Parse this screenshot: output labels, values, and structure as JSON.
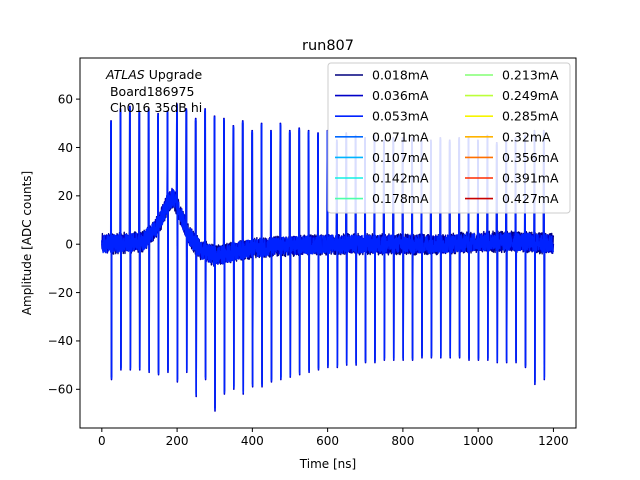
{
  "chart_data": {
    "type": "line",
    "title": "run807",
    "xlabel": "Time [ns]",
    "ylabel": "Amplitude [ADC counts]",
    "xlim": [
      -58,
      1260
    ],
    "ylim": [
      -76,
      77
    ],
    "xticks": [
      0,
      200,
      400,
      600,
      800,
      1000,
      1200
    ],
    "yticks": [
      -60,
      -40,
      -20,
      0,
      20,
      40,
      60
    ],
    "grid": false,
    "annotation": {
      "line1_italic": "ATLAS",
      "line1_rest": " Upgrade",
      "line2": " Board186975",
      "line3": " Ch016 35dB hi"
    },
    "legend_placement": "top-right",
    "series": [
      {
        "name": "0.018mA",
        "color": "#00007f"
      },
      {
        "name": "0.036mA",
        "color": "#0000c8"
      },
      {
        "name": "0.053mA",
        "color": "#0022ff"
      },
      {
        "name": "0.071mA",
        "color": "#0068ff"
      },
      {
        "name": "0.107mA",
        "color": "#00b4ff"
      },
      {
        "name": "0.142mA",
        "color": "#13f0e3"
      },
      {
        "name": "0.178mA",
        "color": "#4dffaa"
      },
      {
        "name": "0.213mA",
        "color": "#83ff73"
      },
      {
        "name": "0.249mA",
        "color": "#bcff3a"
      },
      {
        "name": "0.285mA",
        "color": "#f6f500"
      },
      {
        "name": "0.32mA",
        "color": "#ffb300"
      },
      {
        "name": "0.356mA",
        "color": "#ff7000"
      },
      {
        "name": "0.391mA",
        "color": "#ff2d00"
      },
      {
        "name": "0.427mA",
        "color": "#c80000"
      }
    ],
    "pulse_times_ns": [
      0,
      25,
      50,
      75,
      100,
      125,
      150,
      175,
      200,
      225,
      250,
      275,
      300,
      325,
      350,
      375,
      400,
      425,
      450,
      475,
      500,
      525,
      550,
      575,
      600,
      625,
      650,
      675,
      700,
      725,
      750,
      775,
      800,
      825,
      850,
      875,
      900,
      925,
      950,
      975,
      1000,
      1025,
      1050,
      1075,
      1100,
      1125,
      1150,
      1175
    ],
    "pulse_peaks": [
      0,
      51,
      56,
      57,
      55,
      56,
      54,
      55,
      58,
      56,
      52,
      56,
      53,
      52,
      49,
      51,
      47,
      50,
      47,
      50,
      47,
      48,
      47,
      46,
      47,
      43,
      46,
      45,
      44,
      45,
      43,
      44,
      44,
      44,
      43,
      43,
      44,
      43,
      44,
      44,
      43,
      45,
      42,
      43,
      44,
      45,
      47,
      47
    ],
    "pulse_troughs": [
      0,
      -56,
      -52,
      -52,
      -52,
      -53,
      -54,
      -53,
      -57,
      -53,
      -63,
      -56,
      -69,
      -62,
      -60,
      -62,
      -59,
      -59,
      -57,
      -56,
      -55,
      -54,
      -53,
      -52,
      -51,
      -51,
      -50,
      -50,
      -49,
      -49,
      -48,
      -48,
      -48,
      -48,
      -47,
      -47,
      -47,
      -47,
      -47,
      -48,
      -48,
      -48,
      -49,
      -49,
      -49,
      -51,
      -58,
      -56
    ],
    "slow_wave": [
      [
        0,
        0
      ],
      [
        110,
        1
      ],
      [
        150,
        8
      ],
      [
        175,
        17
      ],
      [
        190,
        20
      ],
      [
        205,
        14
      ],
      [
        230,
        4
      ],
      [
        260,
        -2
      ],
      [
        300,
        -5
      ],
      [
        330,
        -4
      ],
      [
        380,
        -2
      ],
      [
        450,
        -1
      ],
      [
        600,
        0
      ],
      [
        900,
        0
      ],
      [
        1000,
        1
      ],
      [
        1120,
        1
      ],
      [
        1200,
        0
      ]
    ]
  }
}
